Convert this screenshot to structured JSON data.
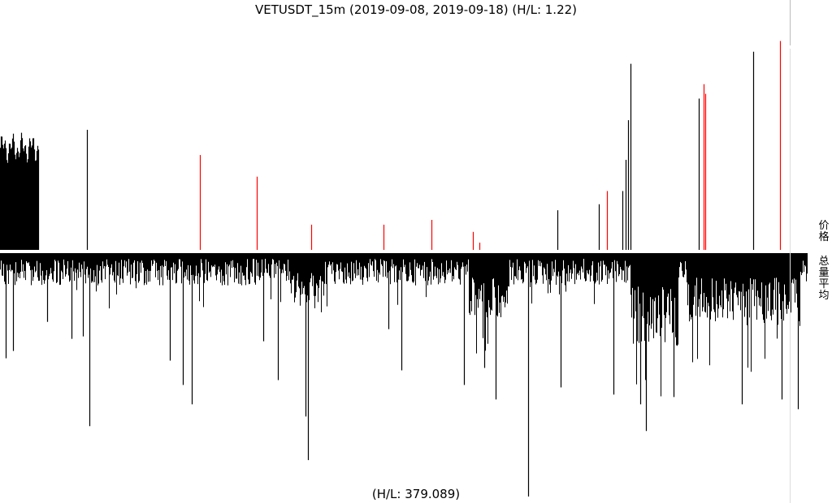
{
  "chart_data": {
    "type": "bar",
    "title": "VETUSDT_15m (2019-09-08, 2019-09-18) (H/L: 1.22)",
    "footer_note": "(H/L: 379.089)",
    "panels": [
      {
        "name": "价格",
        "hl_ratio": 1.22,
        "x_range": [
          0,
          1
        ],
        "baseline": "bottom",
        "colors": {
          "up": "#000000",
          "down": "#ff0000"
        },
        "dense_block": {
          "from": 0.0,
          "to": 0.047,
          "level_min": 0.69,
          "level_max": 0.98
        },
        "spikes": [
          {
            "x": 0.108,
            "h": 1.0,
            "color": "#000000"
          },
          {
            "x": 0.247,
            "h": 0.79,
            "color": "#ff0000"
          },
          {
            "x": 0.318,
            "h": 0.61,
            "color": "#ff0000"
          },
          {
            "x": 0.385,
            "h": 0.21,
            "color": "#ff0000"
          },
          {
            "x": 0.475,
            "h": 0.21,
            "color": "#ff0000"
          },
          {
            "x": 0.534,
            "h": 0.25,
            "color": "#ff0000"
          },
          {
            "x": 0.586,
            "h": 0.15,
            "color": "#ff0000"
          },
          {
            "x": 0.594,
            "h": 0.06,
            "color": "#ff0000"
          },
          {
            "x": 0.69,
            "h": 0.33,
            "color": "#000000"
          },
          {
            "x": 0.741,
            "h": 0.38,
            "color": "#000000"
          },
          {
            "x": 0.752,
            "h": 0.49,
            "color": "#ff0000"
          },
          {
            "x": 0.771,
            "h": 0.49,
            "color": "#000000"
          },
          {
            "x": 0.775,
            "h": 0.75,
            "color": "#000000"
          },
          {
            "x": 0.778,
            "h": 1.08,
            "color": "#000000"
          },
          {
            "x": 0.781,
            "h": 1.55,
            "color": "#000000"
          },
          {
            "x": 0.865,
            "h": 1.26,
            "color": "#000000"
          },
          {
            "x": 0.871,
            "h": 1.38,
            "color": "#ff0000"
          },
          {
            "x": 0.873,
            "h": 1.3,
            "color": "#ff0000"
          },
          {
            "x": 0.933,
            "h": 1.65,
            "color": "#000000"
          },
          {
            "x": 0.966,
            "h": 1.74,
            "color": "#ff0000"
          }
        ]
      },
      {
        "name": "总量平均",
        "hl_ratio": 379.089,
        "x_range": [
          0,
          1
        ],
        "baseline": "top",
        "color": "#000000",
        "background_depth": {
          "min": 0.02,
          "max": 0.13
        },
        "active_zones": [
          {
            "from": 0.36,
            "to": 0.4,
            "depth": 0.22
          },
          {
            "from": 0.58,
            "to": 0.63,
            "depth": 0.28
          },
          {
            "from": 0.78,
            "to": 0.84,
            "depth": 0.38
          },
          {
            "from": 0.85,
            "to": 0.99,
            "depth": 0.28
          }
        ],
        "spikes": [
          {
            "x": 0.007,
            "d": 0.43
          },
          {
            "x": 0.016,
            "d": 0.4
          },
          {
            "x": 0.058,
            "d": 0.28
          },
          {
            "x": 0.089,
            "d": 0.35
          },
          {
            "x": 0.103,
            "d": 0.34
          },
          {
            "x": 0.111,
            "d": 0.71
          },
          {
            "x": 0.21,
            "d": 0.44
          },
          {
            "x": 0.226,
            "d": 0.54
          },
          {
            "x": 0.237,
            "d": 0.62
          },
          {
            "x": 0.326,
            "d": 0.36
          },
          {
            "x": 0.344,
            "d": 0.52
          },
          {
            "x": 0.378,
            "d": 0.67
          },
          {
            "x": 0.381,
            "d": 0.85
          },
          {
            "x": 0.481,
            "d": 0.31
          },
          {
            "x": 0.497,
            "d": 0.48
          },
          {
            "x": 0.574,
            "d": 0.54
          },
          {
            "x": 0.6,
            "d": 0.47
          },
          {
            "x": 0.614,
            "d": 0.6
          },
          {
            "x": 0.654,
            "d": 1.0
          },
          {
            "x": 0.694,
            "d": 0.55
          },
          {
            "x": 0.76,
            "d": 0.58
          },
          {
            "x": 0.793,
            "d": 0.62
          },
          {
            "x": 0.8,
            "d": 0.73
          },
          {
            "x": 0.834,
            "d": 0.59
          },
          {
            "x": 0.919,
            "d": 0.62
          },
          {
            "x": 0.968,
            "d": 0.6
          },
          {
            "x": 0.988,
            "d": 0.64
          }
        ]
      }
    ]
  }
}
